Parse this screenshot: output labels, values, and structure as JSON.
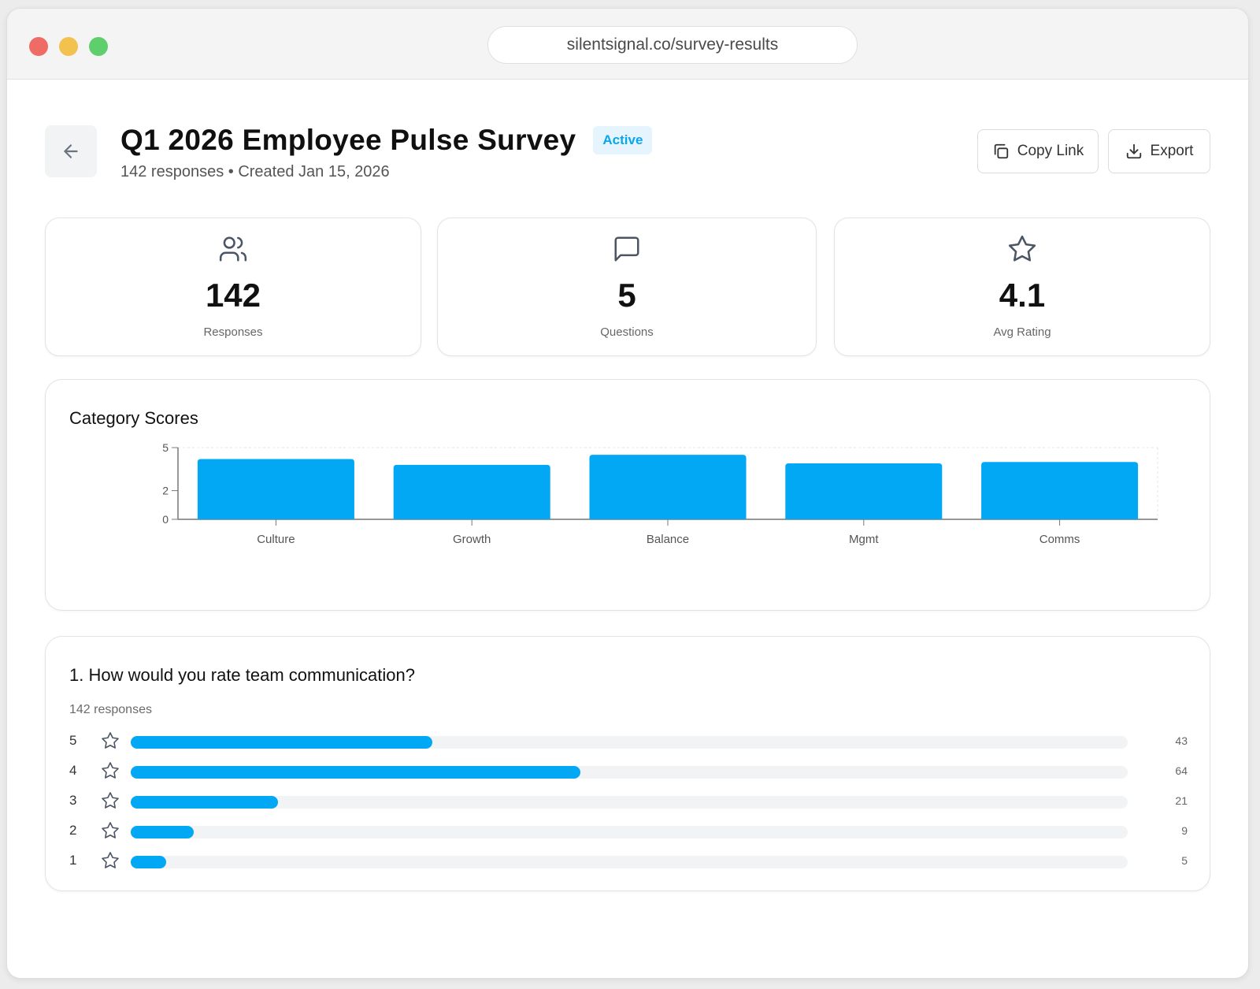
{
  "browser": {
    "url": "silentsignal.co/survey-results"
  },
  "header": {
    "title": "Q1 2026 Employee Pulse Survey",
    "status": "Active",
    "subtitle": "142 responses • Created Jan 15, 2026",
    "copy_label": "Copy Link",
    "export_label": "Export"
  },
  "stats": [
    {
      "icon": "users-icon",
      "value": "142",
      "label": "Responses"
    },
    {
      "icon": "message-icon",
      "value": "5",
      "label": "Questions"
    },
    {
      "icon": "star-icon",
      "value": "4.1",
      "label": "Avg Rating"
    }
  ],
  "chart": {
    "title": "Category Scores"
  },
  "chart_data": {
    "type": "bar",
    "categories": [
      "Culture",
      "Growth",
      "Balance",
      "Mgmt",
      "Comms"
    ],
    "values": [
      4.2,
      3.8,
      4.5,
      3.9,
      4.0
    ],
    "ylim": [
      0,
      5
    ],
    "yticks": [
      0,
      2,
      5
    ],
    "grid": true,
    "color": "#03a8f4"
  },
  "question": {
    "title": "1. How would you rate team communication?",
    "responses": "142 responses",
    "max_value": 142,
    "ratings": [
      {
        "rating": "5",
        "count": 43
      },
      {
        "rating": "4",
        "count": 64
      },
      {
        "rating": "3",
        "count": 21
      },
      {
        "rating": "2",
        "count": 9
      },
      {
        "rating": "1",
        "count": 5
      }
    ]
  },
  "colors": {
    "accent": "#03a8f4",
    "badge_bg": "#e6f5fd",
    "badge_text": "#09a6ee"
  }
}
